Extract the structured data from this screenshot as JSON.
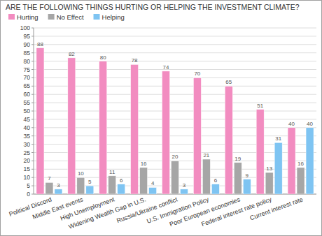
{
  "chart_data": {
    "type": "bar",
    "title": "ARE THE FOLLOWING THINGS HURTING OR HELPING THE INVESTMENT CLIMATE?",
    "categories": [
      "Political Discord",
      "Middle East events",
      "High Unemployment",
      "Widening Wealth Gap in U.S.",
      "Russia/Ukraine conflict",
      "U.S. Immigration Policy",
      "Poor European economies",
      "Federal interest rate policy",
      "Current interest rate"
    ],
    "series": [
      {
        "name": "Hurting",
        "color": "#f28cc0",
        "values": [
          88,
          82,
          80,
          78,
          74,
          70,
          65,
          51,
          40
        ]
      },
      {
        "name": "No Effect",
        "color": "#a6a6a6",
        "values": [
          7,
          10,
          11,
          16,
          20,
          21,
          19,
          13,
          16
        ]
      },
      {
        "name": "Helping",
        "color": "#7ec4f2",
        "values": [
          3,
          5,
          6,
          4,
          3,
          6,
          9,
          31,
          40
        ]
      }
    ],
    "ylim": [
      0,
      100
    ],
    "yticks": [
      0,
      5,
      10,
      15,
      20,
      25,
      30,
      35,
      40,
      45,
      50,
      55,
      60,
      65,
      70,
      75,
      80,
      85,
      90,
      95,
      100
    ],
    "grid": true,
    "legend": "top-left",
    "data_labels": true
  }
}
